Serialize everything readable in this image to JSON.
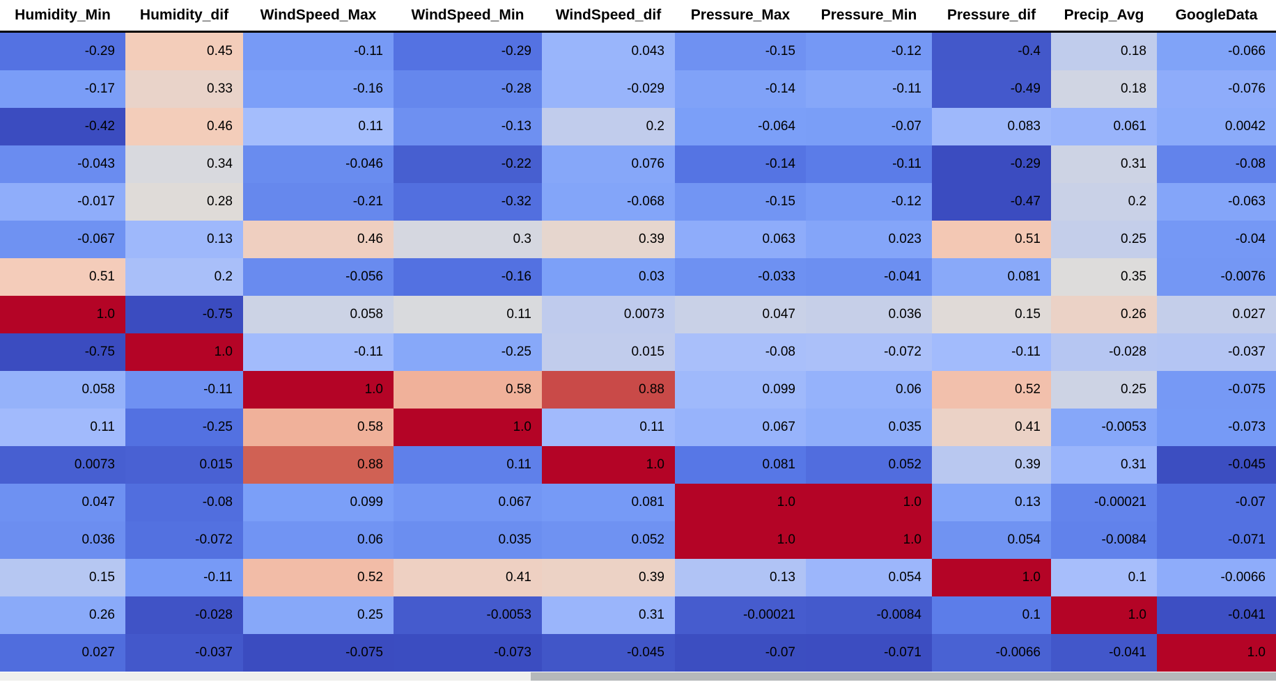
{
  "chart_data": {
    "type": "heatmap",
    "title": "",
    "columns": [
      "Humidity_Min",
      "Humidity_dif",
      "WindSpeed_Max",
      "WindSpeed_Min",
      "WindSpeed_dif",
      "Pressure_Max",
      "Pressure_Min",
      "Pressure_dif",
      "Precip_Avg",
      "GoogleData"
    ],
    "rows": [
      [
        "-0.29",
        "0.45",
        "-0.11",
        "-0.29",
        "0.043",
        "-0.15",
        "-0.12",
        "-0.4",
        "0.18",
        "-0.066"
      ],
      [
        "-0.17",
        "0.33",
        "-0.16",
        "-0.28",
        "-0.029",
        "-0.14",
        "-0.11",
        "-0.49",
        "0.18",
        "-0.076"
      ],
      [
        "-0.42",
        "0.46",
        "0.11",
        "-0.13",
        "0.2",
        "-0.064",
        "-0.07",
        "0.083",
        "0.061",
        "0.0042"
      ],
      [
        "-0.043",
        "0.34",
        "-0.046",
        "-0.22",
        "0.076",
        "-0.14",
        "-0.11",
        "-0.29",
        "0.31",
        "-0.08"
      ],
      [
        "-0.017",
        "0.28",
        "-0.21",
        "-0.32",
        "-0.068",
        "-0.15",
        "-0.12",
        "-0.47",
        "0.2",
        "-0.063"
      ],
      [
        "-0.067",
        "0.13",
        "0.46",
        "0.3",
        "0.39",
        "0.063",
        "0.023",
        "0.51",
        "0.25",
        "-0.04"
      ],
      [
        "0.51",
        "0.2",
        "-0.056",
        "-0.16",
        "0.03",
        "-0.033",
        "-0.041",
        "0.081",
        "0.35",
        "-0.0076"
      ],
      [
        "1.0",
        "-0.75",
        "0.058",
        "0.11",
        "0.0073",
        "0.047",
        "0.036",
        "0.15",
        "0.26",
        "0.027"
      ],
      [
        "-0.75",
        "1.0",
        "-0.11",
        "-0.25",
        "0.015",
        "-0.08",
        "-0.072",
        "-0.11",
        "-0.028",
        "-0.037"
      ],
      [
        "0.058",
        "-0.11",
        "1.0",
        "0.58",
        "0.88",
        "0.099",
        "0.06",
        "0.52",
        "0.25",
        "-0.075"
      ],
      [
        "0.11",
        "-0.25",
        "0.58",
        "1.0",
        "0.11",
        "0.067",
        "0.035",
        "0.41",
        "-0.0053",
        "-0.073"
      ],
      [
        "0.0073",
        "0.015",
        "0.88",
        "0.11",
        "1.0",
        "0.081",
        "0.052",
        "0.39",
        "0.31",
        "-0.045"
      ],
      [
        "0.047",
        "-0.08",
        "0.099",
        "0.067",
        "0.081",
        "1.0",
        "1.0",
        "0.13",
        "-0.00021",
        "-0.07"
      ],
      [
        "0.036",
        "-0.072",
        "0.06",
        "0.035",
        "0.052",
        "1.0",
        "1.0",
        "0.054",
        "-0.0084",
        "-0.071"
      ],
      [
        "0.15",
        "-0.11",
        "0.52",
        "0.41",
        "0.39",
        "0.13",
        "0.054",
        "1.0",
        "0.1",
        "-0.0066"
      ],
      [
        "0.26",
        "-0.028",
        "0.25",
        "-0.0053",
        "0.31",
        "-0.00021",
        "-0.0084",
        "0.1",
        "1.0",
        "-0.041"
      ],
      [
        "0.027",
        "-0.037",
        "-0.075",
        "-0.073",
        "-0.045",
        "-0.07",
        "-0.071",
        "-0.0066",
        "-0.041",
        "1.0"
      ]
    ],
    "row_color_ranges": [
      [
        -0.45,
        1.0
      ],
      [
        -0.55,
        1.0
      ],
      [
        -0.42,
        1.0
      ],
      [
        -0.29,
        1.0
      ],
      [
        -0.47,
        1.0
      ],
      [
        -0.35,
        1.0
      ],
      [
        -0.3,
        1.0
      ],
      [
        -0.75,
        1.0
      ],
      [
        -0.75,
        1.0
      ],
      [
        -0.4,
        1.0
      ],
      [
        -0.4,
        1.0
      ],
      [
        -0.05,
        1.0
      ],
      [
        -0.2,
        1.0
      ],
      [
        -0.2,
        1.0
      ],
      [
        -0.45,
        1.0
      ],
      [
        -0.05,
        1.0
      ],
      [
        -0.075,
        1.0
      ]
    ],
    "colormap": {
      "name": "coolwarm",
      "anchors": [
        "#3B4CC0",
        "#5777E6",
        "#7B9FF8",
        "#A5BDFC",
        "#DDDCDB",
        "#F4CCB9",
        "#ED9F85",
        "#D36A58",
        "#B40426"
      ]
    },
    "cell_text_color": "#000000",
    "legend_position": "none",
    "grid": false
  },
  "header": {
    "background": "#FFFFFF",
    "text_color": "#000000",
    "rule_color": "#000000"
  },
  "scrollbar": {
    "track_color": "#EFEFED",
    "thumb_color": "#B5B8BA"
  }
}
